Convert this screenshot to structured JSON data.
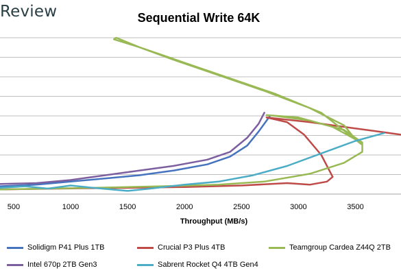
{
  "brand": "Review",
  "chart_data": {
    "type": "line",
    "title": "Sequential Write 64K",
    "xlabel": "Throughput (MB/s)",
    "ylabel": "",
    "xlim": [
      380,
      3900
    ],
    "ylim": [
      0,
      10
    ],
    "x_ticks": [
      500,
      1000,
      1500,
      2000,
      2500,
      3000,
      3500
    ],
    "grid": "horizontal",
    "legend_position": "bottom",
    "series": [
      {
        "name": "Solidigm P41 Plus 1TB",
        "color": "#4573be",
        "points": [
          [
            380,
            0.5
          ],
          [
            700,
            0.6
          ],
          [
            1000,
            0.8
          ],
          [
            1300,
            1.0
          ],
          [
            1600,
            1.2
          ],
          [
            1900,
            1.5
          ],
          [
            2200,
            1.9
          ],
          [
            2400,
            2.4
          ],
          [
            2550,
            3.1
          ],
          [
            2650,
            4.0
          ],
          [
            2750,
            5.0
          ]
        ]
      },
      {
        "name": "Crucial P3 Plus 4TB",
        "color": "#be4b48",
        "points": [
          [
            380,
            0.3
          ],
          [
            900,
            0.35
          ],
          [
            1500,
            0.4
          ],
          [
            2000,
            0.45
          ],
          [
            2500,
            0.55
          ],
          [
            2900,
            0.7
          ],
          [
            3100,
            0.6
          ],
          [
            3250,
            0.8
          ],
          [
            3300,
            1.1
          ],
          [
            3200,
            2.5
          ],
          [
            3050,
            3.8
          ],
          [
            2900,
            4.6
          ],
          [
            2720,
            4.9
          ],
          [
            2850,
            4.8
          ],
          [
            3100,
            4.6
          ],
          [
            3400,
            4.3
          ],
          [
            3700,
            4.0
          ],
          [
            3900,
            3.8
          ]
        ]
      },
      {
        "name": "Teamgroup Cardea Z44Q 2TB",
        "color": "#98b954",
        "points": [
          [
            380,
            0.3
          ],
          [
            800,
            0.35
          ],
          [
            1200,
            0.4
          ],
          [
            1800,
            0.5
          ],
          [
            2300,
            0.6
          ],
          [
            2700,
            0.8
          ],
          [
            3100,
            1.3
          ],
          [
            3400,
            2.0
          ],
          [
            3560,
            2.7
          ],
          [
            3560,
            3.3
          ],
          [
            3400,
            4.1
          ],
          [
            3100,
            4.7
          ],
          [
            2800,
            5.0
          ],
          [
            2720,
            5.05
          ],
          [
            3000,
            4.9
          ],
          [
            3300,
            4.3
          ],
          [
            3500,
            3.5
          ],
          [
            3400,
            4.4
          ],
          [
            3100,
            5.5
          ],
          [
            2700,
            6.6
          ],
          [
            2300,
            7.6
          ],
          [
            1900,
            8.6
          ],
          [
            1600,
            9.4
          ],
          [
            1400,
            10.0
          ],
          [
            1380,
            9.9
          ],
          [
            1600,
            9.4
          ],
          [
            2000,
            8.4
          ],
          [
            2400,
            7.4
          ],
          [
            2800,
            6.4
          ],
          [
            3200,
            5.2
          ],
          [
            3550,
            3.2
          ]
        ]
      },
      {
        "name": "Intel 670p 2TB Gen3",
        "color": "#7d5fa0",
        "points": [
          [
            380,
            0.65
          ],
          [
            700,
            0.7
          ],
          [
            1000,
            0.9
          ],
          [
            1300,
            1.2
          ],
          [
            1600,
            1.5
          ],
          [
            1900,
            1.8
          ],
          [
            2200,
            2.2
          ],
          [
            2400,
            2.7
          ],
          [
            2550,
            3.6
          ],
          [
            2650,
            4.5
          ],
          [
            2700,
            5.2
          ]
        ]
      },
      {
        "name": "Sabrent Rocket Q4 4TB Gen4",
        "color": "#4bacc6",
        "points": [
          [
            380,
            0.4
          ],
          [
            600,
            0.5
          ],
          [
            800,
            0.35
          ],
          [
            1000,
            0.55
          ],
          [
            1200,
            0.4
          ],
          [
            1500,
            0.2
          ],
          [
            1700,
            0.35
          ],
          [
            2000,
            0.6
          ],
          [
            2300,
            0.8
          ],
          [
            2600,
            1.2
          ],
          [
            2900,
            1.8
          ],
          [
            3200,
            2.6
          ],
          [
            3500,
            3.4
          ],
          [
            3750,
            3.9
          ]
        ]
      }
    ]
  }
}
